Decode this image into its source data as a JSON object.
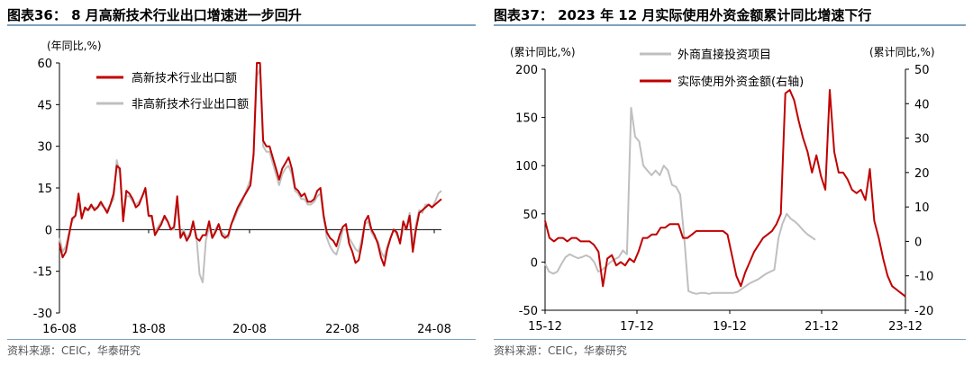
{
  "charts": [
    {
      "figure_title": "图表36：  8 月高新技术行业出口增速进一步回升",
      "source": "资料来源：CEIC，华泰研究",
      "chart_data": {
        "type": "line",
        "ylabel": "(年同比,%)",
        "ylim": [
          -30,
          60
        ],
        "yticks": [
          -30,
          -15,
          0,
          15,
          30,
          45,
          60
        ],
        "xtick_labels": [
          "16-08",
          "18-08",
          "20-08",
          "22-08",
          "24-08"
        ],
        "legend_position": "top-left",
        "grid": false,
        "series": [
          {
            "name": "高新技术行业出口额",
            "color": "#c00000",
            "values": [
              -5,
              -10,
              -8,
              -2,
              4,
              5,
              13,
              4,
              8,
              7,
              9,
              7,
              8,
              10,
              8,
              6,
              9,
              13,
              23,
              22,
              3,
              14,
              13,
              11,
              8,
              9,
              12,
              15,
              5,
              5,
              -2,
              0,
              2,
              5,
              3,
              0,
              1,
              12,
              -3,
              -1,
              -4,
              -2,
              3,
              -3,
              -4,
              -2,
              -2,
              3,
              -3,
              -1,
              2,
              -2,
              -3,
              -2,
              2,
              5,
              8,
              10,
              12,
              14,
              16,
              27,
              60,
              60,
              32,
              30,
              30,
              26,
              22,
              18,
              22,
              24,
              26,
              22,
              15,
              14,
              12,
              13,
              10,
              10,
              11,
              14,
              15,
              5,
              -1,
              -3,
              -4,
              -6,
              -2,
              1,
              2,
              -5,
              -8,
              -12,
              -11,
              -5,
              3,
              5,
              0,
              -2,
              -5,
              -10,
              -13,
              -7,
              -3,
              0,
              -1,
              -5,
              3,
              0,
              5,
              -8,
              0,
              6,
              7,
              8,
              9,
              8,
              9,
              10,
              11
            ]
          },
          {
            "name": "非高新技术行业出口额",
            "color": "#bfbfbf",
            "values": [
              -3,
              -8,
              -6,
              -1,
              3,
              5,
              9,
              5,
              7,
              7,
              8,
              8,
              8,
              9,
              8,
              7,
              9,
              11,
              25,
              20,
              4,
              12,
              12,
              10,
              9,
              10,
              12,
              14,
              5,
              4,
              -1,
              1,
              3,
              4,
              3,
              0,
              0,
              9,
              -2,
              0,
              -3,
              -1,
              2,
              -2,
              -16,
              -19,
              -4,
              1,
              -3,
              0,
              2,
              -1,
              -2,
              -3,
              2,
              4,
              7,
              9,
              12,
              15,
              18,
              28,
              55,
              58,
              30,
              28,
              28,
              24,
              20,
              16,
              20,
              22,
              23,
              20,
              14,
              13,
              11,
              11,
              9,
              9,
              10,
              12,
              13,
              4,
              -3,
              -6,
              -8,
              -9,
              -5,
              0,
              0,
              -3,
              -5,
              -7,
              -8,
              -3,
              2,
              3,
              -1,
              -3,
              -4,
              -8,
              -10,
              -6,
              -3,
              0,
              -2,
              -4,
              0,
              1,
              6,
              -6,
              2,
              7,
              6,
              9,
              9,
              8,
              10,
              13,
              14
            ]
          }
        ]
      }
    },
    {
      "figure_title": "图表37：  2023 年 12 月实际使用外资金额累计同比增速下行",
      "source": "资料来源：CEIC，华泰研究",
      "chart_data": {
        "type": "line",
        "ylabel_left": "(累计同比,%)",
        "ylabel_right": "(累计同比,%)",
        "ylim_left": [
          -50,
          200
        ],
        "yticks_left": [
          -50,
          0,
          50,
          100,
          150,
          200
        ],
        "ylim_right": [
          -20,
          50
        ],
        "yticks_right": [
          -20,
          -10,
          0,
          10,
          20,
          30,
          40,
          50
        ],
        "xtick_labels": [
          "15-12",
          "17-12",
          "19-12",
          "21-12",
          "23-12"
        ],
        "legend_position": "top-center",
        "grid": false,
        "series": [
          {
            "name": "外商直接投资项目",
            "color": "#bfbfbf",
            "axis": "left",
            "values": [
              -2,
              -10,
              -12,
              -10,
              -2,
              5,
              8,
              6,
              4,
              5,
              7,
              5,
              0,
              -10,
              -8,
              -4,
              0,
              3,
              5,
              12,
              8,
              160,
              130,
              125,
              100,
              95,
              90,
              95,
              90,
              100,
              95,
              80,
              78,
              70,
              25,
              -30,
              -32,
              -33,
              -32,
              -32,
              -33,
              -32,
              -32,
              -32,
              -32,
              -32,
              -32,
              -31,
              -28,
              -25,
              -22,
              -20,
              -18,
              -15,
              -12,
              -10,
              -8,
              25,
              40,
              50,
              45,
              42,
              38,
              33,
              29,
              26,
              23
            ]
          },
          {
            "name": "实际使用外资金额(右轴)",
            "color": "#c00000",
            "axis": "right",
            "values": [
              6,
              1,
              0,
              1,
              1,
              0,
              1,
              1,
              0,
              0,
              0,
              -1,
              -3,
              -13,
              -5,
              -4,
              -7,
              -6,
              -7,
              -5,
              -6,
              -3,
              1,
              1,
              2,
              2,
              4,
              4,
              5,
              5,
              5,
              1,
              1,
              2,
              3,
              3,
              3,
              3,
              3,
              3,
              3,
              2,
              -4,
              -10,
              -13,
              -9,
              -6,
              -3,
              -1,
              1,
              2,
              3,
              5,
              8,
              43,
              44,
              41,
              35,
              30,
              26,
              20,
              25,
              19,
              15,
              44,
              26,
              20,
              20,
              18,
              15,
              14,
              15,
              12,
              21,
              6,
              1,
              -5,
              -10,
              -13,
              -14,
              -15,
              -16
            ]
          }
        ]
      }
    }
  ]
}
